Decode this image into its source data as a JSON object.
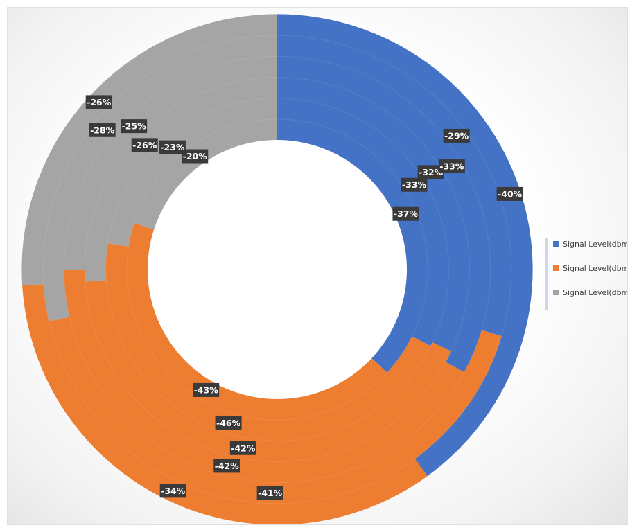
{
  "chart_data": {
    "type": "doughnut",
    "title": "",
    "series": [
      {
        "name": "Signal Level(dbm) X",
        "color": "#4472C4",
        "values": [
          -37,
          -33,
          -32,
          -33,
          -29,
          -40
        ]
      },
      {
        "name": "Signal Level(dbm) Y",
        "color": "#ED7D31",
        "values": [
          -43,
          -46,
          -42,
          -42,
          -41,
          -34
        ]
      },
      {
        "name": "Signal Level(dbm) Z",
        "color": "#A5A5A5",
        "values": [
          -20,
          -23,
          -26,
          -25,
          -28,
          -26
        ]
      }
    ],
    "data_labels": {
      "X": [
        "-37%",
        "-33%",
        "-32%",
        "-33%",
        "-29%",
        "-40%"
      ],
      "Y": [
        "-43%",
        "-46%",
        "-42%",
        "-42%",
        "-41%",
        "-34%"
      ],
      "Z": [
        "-20%",
        "-23%",
        "-26%",
        "-25%",
        "-28%",
        "-26%"
      ]
    },
    "legend_position": "right",
    "grid": false
  },
  "legend": {
    "items": [
      {
        "label": "Signal Level(dbm) X",
        "color": "#4472C4"
      },
      {
        "label": "Signal Level(dbm) Y",
        "color": "#ED7D31"
      },
      {
        "label": "Signal Level(dbm) Z",
        "color": "#A5A5A5"
      }
    ]
  }
}
